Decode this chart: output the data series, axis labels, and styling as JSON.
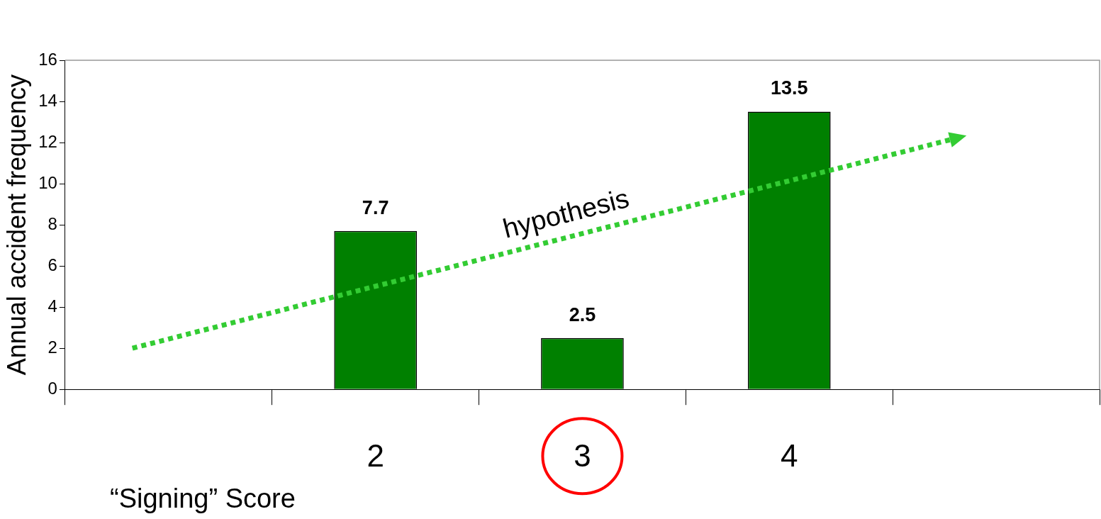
{
  "chart_data": {
    "type": "bar",
    "xlabel": "“Signing” Score",
    "ylabel": "Annual accident frequency",
    "categories": [
      null,
      "2",
      "3",
      "4",
      null
    ],
    "values": [
      null,
      7.7,
      2.5,
      13.5,
      null
    ],
    "color": "#008000",
    "ylim": [
      0,
      16
    ],
    "yticks": [
      0,
      2,
      4,
      6,
      8,
      10,
      12,
      14,
      16
    ],
    "grid": false,
    "legend": false,
    "data_labels": true,
    "annotations": [
      "hypothesis"
    ]
  }
}
